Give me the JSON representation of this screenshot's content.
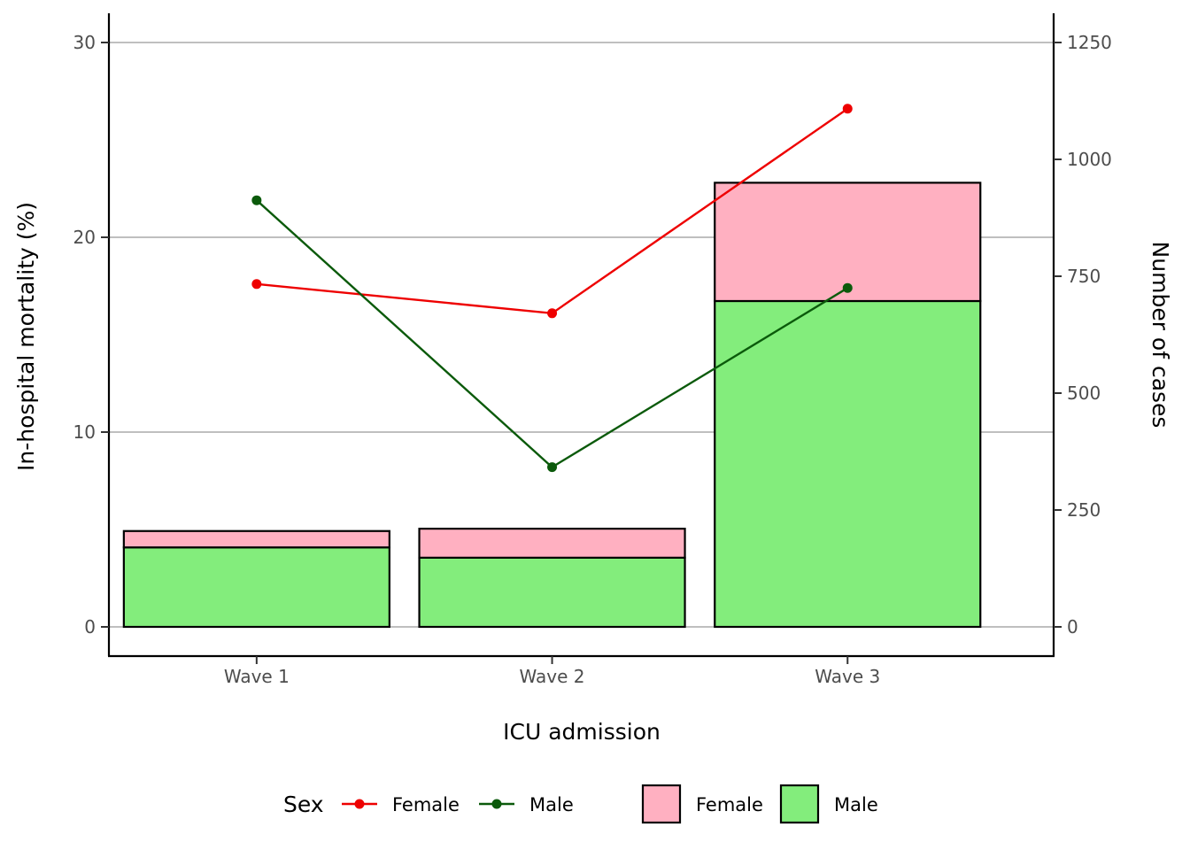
{
  "chart_data": {
    "type": "bar",
    "stacked": true,
    "categories": [
      "Wave 1",
      "Wave 2",
      "Wave 3"
    ],
    "xlabel": "ICU admission",
    "ylabel_left": "In-hospital mortality (%)",
    "ylabel_right": "Number of cases",
    "ylim_left": [
      -1.5,
      31.5
    ],
    "yticks_left": [
      0,
      10,
      20,
      30
    ],
    "ylim_right": [
      -62.5,
      1312.5
    ],
    "yticks_right": [
      0,
      250,
      500,
      750,
      1000,
      1250
    ],
    "grid": "horizontal major lines",
    "bar_series": [
      {
        "name": "Male",
        "axis": "right",
        "color": "#83ED7C",
        "values": [
          170,
          148,
          697
        ]
      },
      {
        "name": "Female",
        "axis": "right",
        "color": "#FFB0C1",
        "values": [
          35,
          62,
          253
        ]
      }
    ],
    "line_series": [
      {
        "name": "Female",
        "axis": "left",
        "color": "#EE0000",
        "values": [
          17.6,
          16.1,
          26.6
        ]
      },
      {
        "name": "Male",
        "axis": "left",
        "color": "#0B5A0B",
        "values": [
          21.9,
          8.2,
          17.4
        ]
      }
    ],
    "legend": {
      "placement": "bottom",
      "title": "Sex",
      "line_items": [
        "Female",
        "Male"
      ],
      "fill_items": [
        "Female",
        "Male"
      ]
    }
  }
}
